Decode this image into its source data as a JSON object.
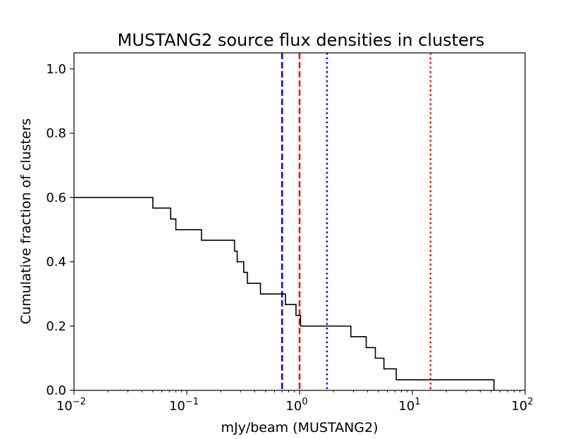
{
  "chart_data": {
    "type": "line",
    "title": "MUSTANG2 source flux densities in clusters",
    "xlabel": "mJy/beam (MUSTANG2)",
    "ylabel": "Cumulative fraction of clusters",
    "xscale": "log",
    "xlim": [
      0.01,
      100
    ],
    "ylim": [
      0.0,
      1.05
    ],
    "x_ticks": [
      {
        "value": 0.01,
        "base": "10",
        "exp": "−2"
      },
      {
        "value": 0.1,
        "base": "10",
        "exp": "−1"
      },
      {
        "value": 1,
        "base": "10",
        "exp": "0"
      },
      {
        "value": 10,
        "base": "10",
        "exp": "1"
      },
      {
        "value": 100,
        "base": "10",
        "exp": "2"
      }
    ],
    "y_ticks": [
      {
        "value": 0.0,
        "label": "0.0"
      },
      {
        "value": 0.2,
        "label": "0.2"
      },
      {
        "value": 0.4,
        "label": "0.4"
      },
      {
        "value": 0.6,
        "label": "0.6"
      },
      {
        "value": 0.8,
        "label": "0.8"
      },
      {
        "value": 1.0,
        "label": "1.0"
      }
    ],
    "grid": false,
    "series": [
      {
        "name": "cumulative fraction",
        "color": "#000000",
        "drawstyle": "steps-post",
        "x": [
          0.01,
          0.05,
          0.072,
          0.08,
          0.135,
          0.265,
          0.28,
          0.32,
          0.345,
          0.45,
          0.75,
          0.93,
          1.02,
          2.85,
          3.9,
          4.7,
          5.6,
          7.2,
          53
        ],
        "y": [
          0.6,
          0.567,
          0.533,
          0.5,
          0.467,
          0.433,
          0.4,
          0.367,
          0.333,
          0.3,
          0.267,
          0.233,
          0.2,
          0.167,
          0.133,
          0.1,
          0.067,
          0.033,
          0.0
        ]
      }
    ],
    "vlines": [
      {
        "name": "blue dashed line",
        "x": 0.7,
        "color": "#0000ff",
        "style": "dashed"
      },
      {
        "name": "red dashed line",
        "x": 1.0,
        "color": "#ff0000",
        "style": "dashed"
      },
      {
        "name": "blue dotted line",
        "x": 1.75,
        "color": "#0000ff",
        "style": "dotted"
      },
      {
        "name": "red dotted line",
        "x": 14.5,
        "color": "#ff0000",
        "style": "dotted"
      }
    ]
  }
}
